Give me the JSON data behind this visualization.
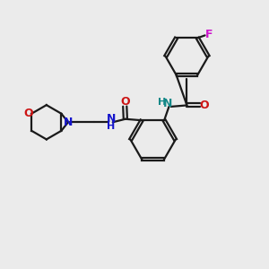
{
  "bg_color": "#ebebeb",
  "bond_color": "#1a1a1a",
  "N_color": "#1414cc",
  "O_color": "#cc1414",
  "F_color": "#cc14cc",
  "NH_color": "#148888",
  "lw": 1.6,
  "figsize": [
    3.0,
    3.0
  ],
  "dpi": 100,
  "xlim": [
    0,
    10
  ],
  "ylim": [
    0,
    10
  ]
}
